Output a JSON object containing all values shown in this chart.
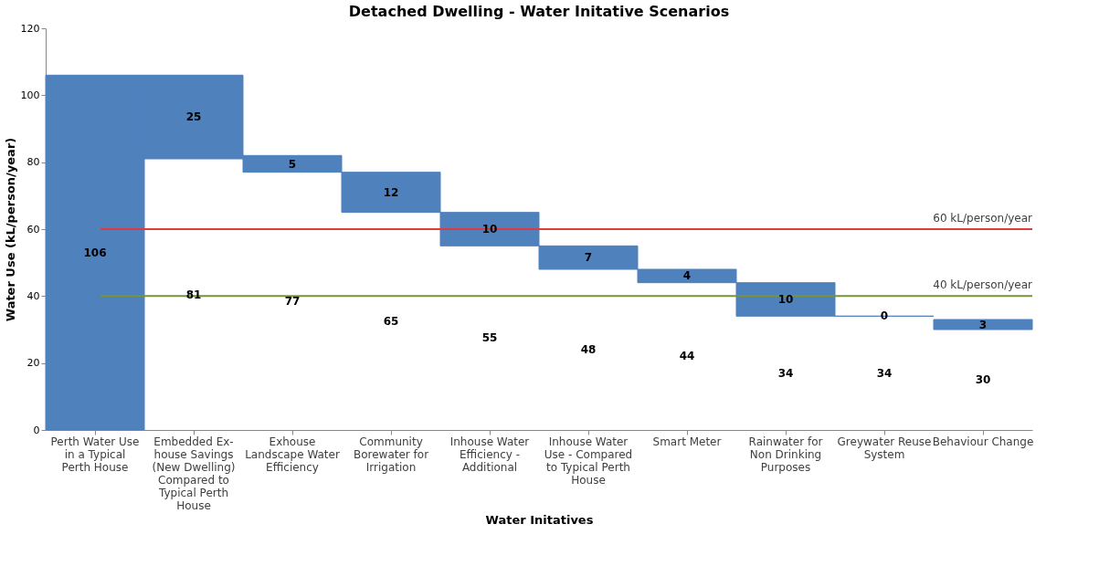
{
  "chart_data": {
    "type": "bar",
    "title": "Detached Dwelling - Water Initative Scenarios",
    "xlabel": "Water Initatives",
    "ylabel": "Water Use (kL/person/year)",
    "categories": [
      "Perth Water Use in a Typical Perth House",
      "Embedded Ex-house Savings (New Dwelling) Compared to Typical Perth House",
      "Exhouse Landscape Water Efficiency",
      "Community Borewater for Irrigation",
      "Inhouse Water Efficiency - Additional",
      "Inhouse Water Use - Compared to Typical Perth House",
      "Smart Meter",
      "Rainwater for Non Drinking Purposes",
      "Greywater Reuse System",
      "Behaviour Change"
    ],
    "values": [
      106,
      25,
      5,
      12,
      10,
      7,
      4,
      10,
      0,
      3
    ],
    "base": [
      0,
      81,
      77,
      65,
      55,
      48,
      44,
      34,
      34,
      30
    ],
    "value_labels": [
      "106",
      "25",
      "5",
      "12",
      "10",
      "7",
      "4",
      "10",
      "0",
      "3"
    ],
    "color": "#4f81bd",
    "ylim": [
      0,
      120
    ],
    "yticks": [
      0,
      20,
      40,
      60,
      80,
      100,
      120
    ],
    "grid": false,
    "ref_lines": [
      {
        "axis": "y",
        "value": 60,
        "label": "60 kL/person/year",
        "color": "#e0393e"
      },
      {
        "axis": "y",
        "value": 40,
        "label": "40 kL/person/year",
        "color": "#77933c"
      }
    ],
    "annotations": [
      "81",
      "77",
      "65",
      "55",
      "48",
      "44",
      "34",
      "34",
      "30"
    ]
  }
}
